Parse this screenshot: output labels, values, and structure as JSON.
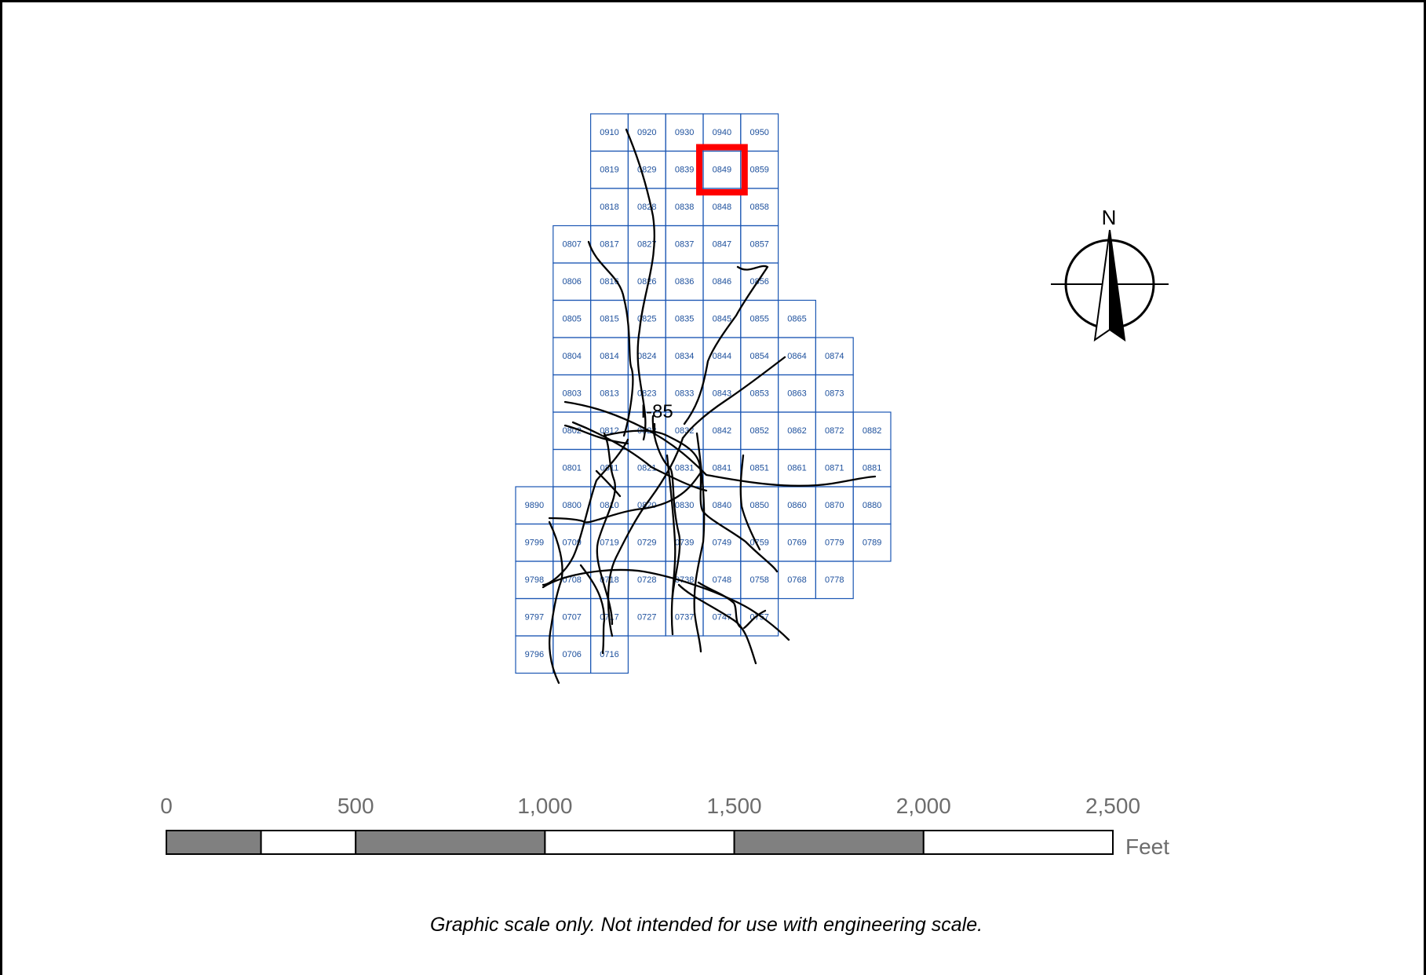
{
  "grid": {
    "cells": [
      [
        "",
        "",
        "0910",
        "0920",
        "0930",
        "0940",
        "0950",
        "",
        "",
        ""
      ],
      [
        "",
        "",
        "0819",
        "0829",
        "0839",
        "0849",
        "0859",
        "",
        "",
        ""
      ],
      [
        "",
        "",
        "0818",
        "0828",
        "0838",
        "0848",
        "0858",
        "",
        "",
        ""
      ],
      [
        "",
        "0807",
        "0817",
        "0827",
        "0837",
        "0847",
        "0857",
        "",
        "",
        ""
      ],
      [
        "",
        "0806",
        "0816",
        "0826",
        "0836",
        "0846",
        "0856",
        "",
        "",
        ""
      ],
      [
        "",
        "0805",
        "0815",
        "0825",
        "0835",
        "0845",
        "0855",
        "0865",
        "",
        ""
      ],
      [
        "",
        "0804",
        "0814",
        "0824",
        "0834",
        "0844",
        "0854",
        "0864",
        "0874",
        ""
      ],
      [
        "",
        "0803",
        "0813",
        "0823",
        "0833",
        "0843",
        "0853",
        "0863",
        "0873",
        ""
      ],
      [
        "",
        "0802",
        "0812",
        "0822",
        "0832",
        "0842",
        "0852",
        "0862",
        "0872",
        "0882"
      ],
      [
        "",
        "0801",
        "0811",
        "0821",
        "0831",
        "0841",
        "0851",
        "0861",
        "0871",
        "0881"
      ],
      [
        "9890",
        "0800",
        "0810",
        "0820",
        "0830",
        "0840",
        "0850",
        "0860",
        "0870",
        "0880"
      ],
      [
        "9799",
        "0709",
        "0719",
        "0729",
        "0739",
        "0749",
        "0759",
        "0769",
        "0779",
        "0789"
      ],
      [
        "9798",
        "0708",
        "0718",
        "0728",
        "0738",
        "0748",
        "0758",
        "0768",
        "0778",
        ""
      ],
      [
        "9797",
        "0707",
        "0717",
        "0727",
        "0737",
        "0747",
        "0757",
        "",
        "",
        ""
      ],
      [
        "9796",
        "0706",
        "0716",
        "",
        "",
        "",
        "",
        "",
        "",
        ""
      ]
    ],
    "highlighted_tile": "0849",
    "highlight_color": "#ff0000",
    "grid_color": "#1c57b3"
  },
  "road_label": "I-85",
  "north_arrow": {
    "label": "N",
    "icon": "north-arrow-icon"
  },
  "scale_bar": {
    "tick_labels": [
      "0",
      "500",
      "1,000",
      "1,500",
      "2,000",
      "2,500"
    ],
    "unit": "Feet",
    "segment_fill": "#808080"
  },
  "footnote": "Graphic scale only.  Not intended for use with engineering scale."
}
